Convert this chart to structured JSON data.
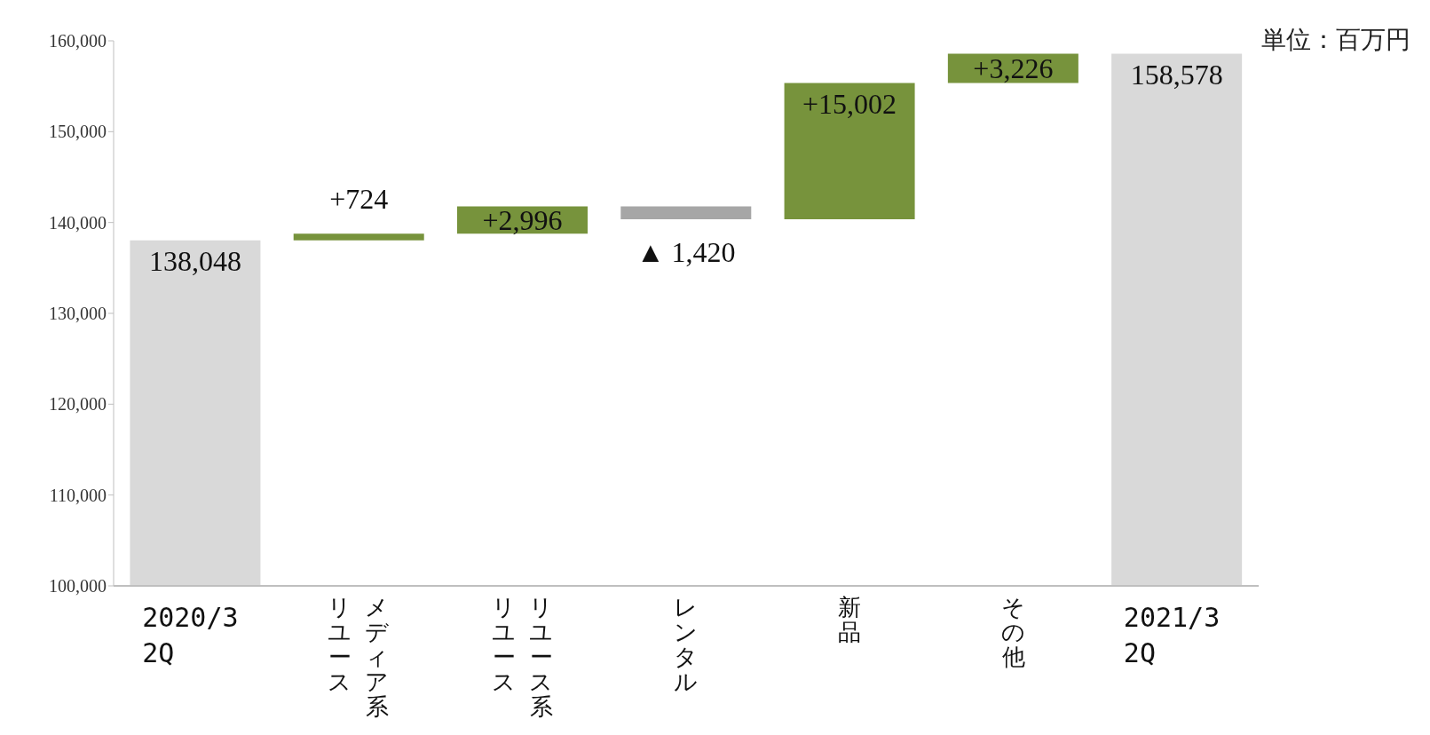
{
  "chart_data": {
    "type": "bar",
    "categories": [
      "2020/3\n2Q",
      "メディア系リユース",
      "リユース系リユース",
      "レンタル",
      "新品",
      "その他",
      "2021/3\n2Q"
    ],
    "values": [
      138048,
      724,
      2996,
      -1420,
      15002,
      3226,
      158578
    ],
    "base": [
      null,
      138048,
      138772,
      141768,
      140348,
      155350,
      null
    ],
    "colors": [
      "#d9d9d9",
      "#77933c",
      "#77933c",
      "#a6a6a6",
      "#77933c",
      "#77933c",
      "#d9d9d9"
    ],
    "value_labels": [
      "138,048",
      "+724",
      "+2,996",
      "▲ 1,420",
      "+15,002",
      "+3,226",
      "158,578"
    ],
    "ylim": [
      100000,
      160000
    ],
    "yticks": [
      {
        "value": 100000,
        "label": "100,000"
      },
      {
        "value": 110000,
        "label": "110,000"
      },
      {
        "value": 120000,
        "label": "120,000"
      },
      {
        "value": 130000,
        "label": "130,000"
      },
      {
        "value": 140000,
        "label": "140,000"
      },
      {
        "value": 150000,
        "label": "150,000"
      },
      {
        "value": 160000,
        "label": "160,000"
      }
    ],
    "grid": false,
    "annotations": [
      "単位：百万円"
    ]
  }
}
